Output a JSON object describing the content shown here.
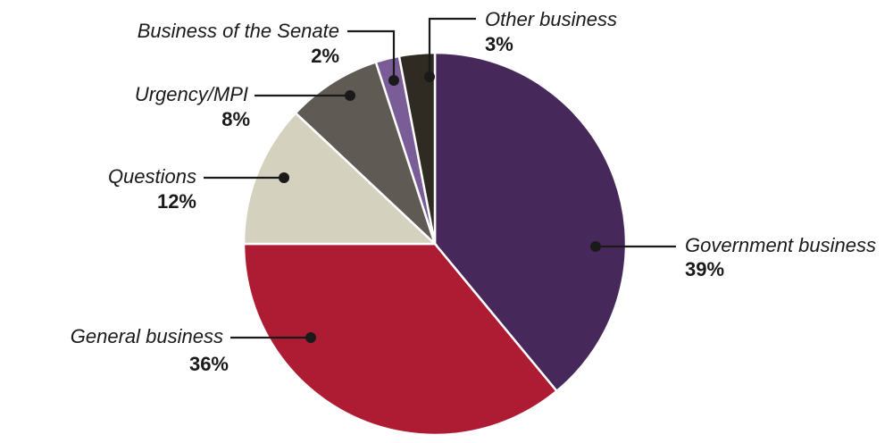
{
  "chart_data": {
    "type": "pie",
    "slices": [
      {
        "label": "Government business",
        "value": 39,
        "value_label": "39%",
        "color": "#47285b"
      },
      {
        "label": "General business",
        "value": 36,
        "value_label": "36%",
        "color": "#ae1c33"
      },
      {
        "label": "Questions",
        "value": 12,
        "value_label": "12%",
        "color": "#d5d1bf"
      },
      {
        "label": "Urgency/MPI",
        "value": 8,
        "value_label": "8%",
        "color": "#5f5a54"
      },
      {
        "label": "Business of the Senate",
        "value": 2,
        "value_label": "2%",
        "color": "#7a5c96"
      },
      {
        "label": "Other business",
        "value": 3,
        "value_label": "3%",
        "color": "#2f2a22"
      }
    ]
  }
}
